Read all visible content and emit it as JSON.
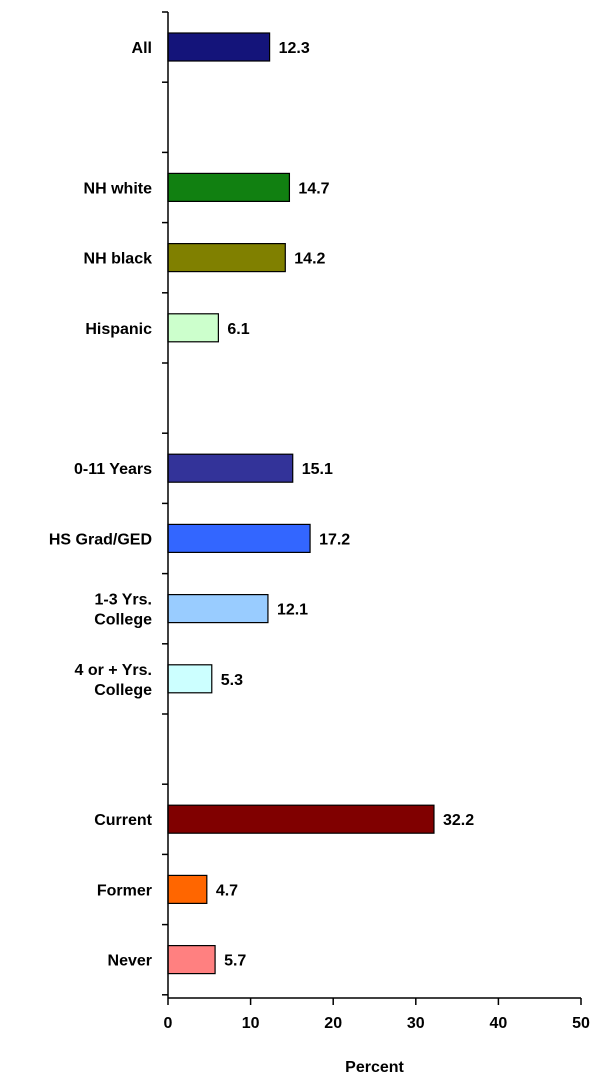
{
  "chart_data": {
    "type": "bar",
    "orientation": "horizontal",
    "xlabel": "Percent",
    "xlim": [
      0,
      50
    ],
    "xticks": [
      0,
      10,
      20,
      30,
      40,
      50
    ],
    "grid": false,
    "legend": "none",
    "slots": [
      {
        "label": "All",
        "value": 12.3,
        "color": "#14147a"
      },
      null,
      {
        "label": "NH white",
        "value": 14.7,
        "color": "#118011"
      },
      {
        "label": "NH black",
        "value": 14.2,
        "color": "#808000"
      },
      {
        "label": "Hispanic",
        "value": 6.1,
        "color": "#ccffcc"
      },
      null,
      {
        "label": "0-11 Years",
        "value": 15.1,
        "color": "#333399"
      },
      {
        "label": "HS Grad/GED",
        "value": 17.2,
        "color": "#3366ff"
      },
      {
        "label": "1-3 Yrs.\nCollege",
        "value": 12.1,
        "color": "#99ccff"
      },
      {
        "label": "4 or + Yrs.\nCollege",
        "value": 5.3,
        "color": "#ccffff"
      },
      null,
      {
        "label": "Current",
        "value": 32.2,
        "color": "#800000"
      },
      {
        "label": "Former",
        "value": 4.7,
        "color": "#ff6600"
      },
      {
        "label": "Never",
        "value": 5.7,
        "color": "#ff8080"
      }
    ]
  }
}
